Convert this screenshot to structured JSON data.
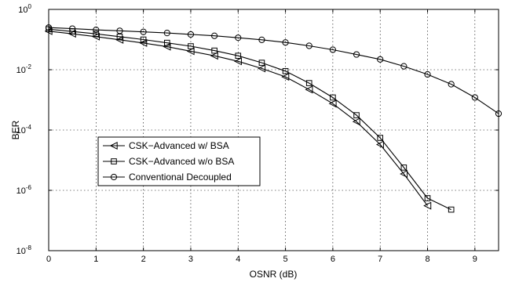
{
  "chart_data": {
    "type": "line",
    "xlabel": "OSNR (dB)",
    "ylabel": "BER",
    "xlim": [
      0,
      9.5
    ],
    "ylim": [
      1e-08,
      1
    ],
    "yscale": "log",
    "grid": true,
    "legend_position": "left-center",
    "x_ticks": [
      "0",
      "1",
      "2",
      "3",
      "4",
      "5",
      "6",
      "7",
      "8",
      "9"
    ],
    "y_ticks": [
      {
        "base": "10",
        "exp": "0",
        "value": 1
      },
      {
        "base": "10",
        "exp": "-2",
        "value": 0.01
      },
      {
        "base": "10",
        "exp": "-4",
        "value": 0.0001
      },
      {
        "base": "10",
        "exp": "-6",
        "value": 1e-06
      },
      {
        "base": "10",
        "exp": "-8",
        "value": 1e-08
      }
    ],
    "series": [
      {
        "name": "CSK−Advanced w/ BSA",
        "marker": "triangle-left",
        "x": [
          0,
          0.5,
          1,
          1.5,
          2,
          2.5,
          3,
          3.5,
          4,
          4.5,
          5,
          5.5,
          6,
          6.5,
          7,
          7.5,
          8
        ],
        "y": [
          0.19,
          0.155,
          0.125,
          0.098,
          0.077,
          0.058,
          0.041,
          0.029,
          0.019,
          0.011,
          0.0058,
          0.0022,
          0.00075,
          0.00019,
          3.3e-05,
          3.5e-06,
          3.1e-07
        ]
      },
      {
        "name": "CSK−Advanced w/o BSA",
        "marker": "square",
        "x": [
          0,
          0.5,
          1,
          1.5,
          2,
          2.5,
          3,
          3.5,
          4,
          4.5,
          5,
          5.5,
          6,
          6.5,
          7,
          7.5,
          8,
          8.5
        ],
        "y": [
          0.22,
          0.185,
          0.155,
          0.125,
          0.1,
          0.078,
          0.06,
          0.043,
          0.029,
          0.017,
          0.009,
          0.0036,
          0.0012,
          0.00031,
          5.5e-05,
          5.7e-06,
          5.5e-07,
          2.3e-07
        ]
      },
      {
        "name": "Conventional Decoupled",
        "marker": "circle",
        "x": [
          0,
          0.5,
          1,
          1.5,
          2,
          2.5,
          3,
          3.5,
          4,
          4.5,
          5,
          5.5,
          6,
          6.5,
          7,
          7.5,
          8,
          8.5,
          9,
          9.5
        ],
        "y": [
          0.25,
          0.23,
          0.21,
          0.195,
          0.18,
          0.165,
          0.148,
          0.133,
          0.115,
          0.098,
          0.08,
          0.062,
          0.046,
          0.032,
          0.022,
          0.013,
          0.007,
          0.0033,
          0.0012,
          0.00035
        ]
      }
    ]
  }
}
